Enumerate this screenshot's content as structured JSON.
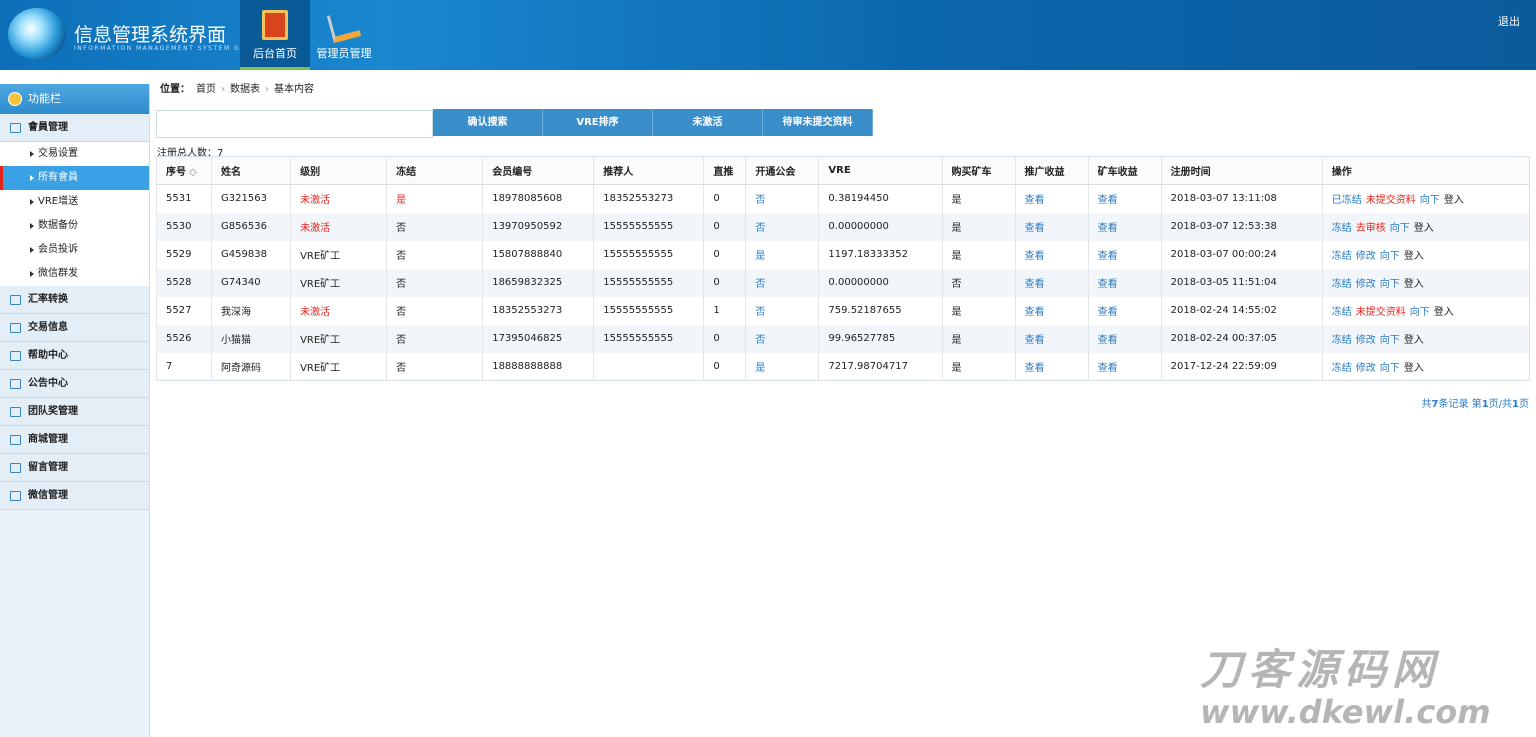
{
  "header": {
    "title": "信息管理系统界面",
    "subtitle": "INFORMATION MANAGEMENT SYSTEM GUI",
    "nav": [
      "后台首页",
      "管理员管理"
    ],
    "logout": "退出"
  },
  "sidebar": {
    "title": "功能栏",
    "groups": [
      {
        "label": "會員管理",
        "items": [
          "交易设置",
          "所有會員",
          "VRE增送",
          "数据备份",
          "会员投诉",
          "微信群发"
        ]
      },
      {
        "label": "汇率转换"
      },
      {
        "label": "交易信息"
      },
      {
        "label": "帮助中心"
      },
      {
        "label": "公告中心"
      },
      {
        "label": "团队奖管理"
      },
      {
        "label": "商城管理"
      },
      {
        "label": "留言管理"
      },
      {
        "label": "微信管理"
      }
    ]
  },
  "breadcrumb": {
    "label": "位置：",
    "items": [
      "首页",
      "数据表",
      "基本内容"
    ]
  },
  "buttons": [
    "确认搜索",
    "VRE排序",
    "未激活",
    "待审未提交资料"
  ],
  "count": {
    "label": "注册总人数：",
    "value": 7
  },
  "table": {
    "headers": [
      "序号",
      "姓名",
      "级别",
      "冻结",
      "会员编号",
      "推荐人",
      "直推",
      "开通公会",
      "VRE",
      "购买矿车",
      "推广收益",
      "矿车收益",
      "注册时间",
      "操作"
    ],
    "rows": [
      [
        5531,
        "G321563",
        {
          "text": "未激活",
          "color": "#e8231c"
        },
        {
          "text": "是",
          "color": "#e8231c"
        },
        "18978085608",
        "18352553273",
        0,
        "否",
        "0.38194450",
        "是",
        "查看",
        "查看",
        "2018-03-07 13:11:08",
        [
          "已冻结",
          {
            "text": "未提交资料",
            "color": "#e8231c"
          },
          "向下",
          "登入"
        ]
      ],
      [
        5530,
        "G856536",
        {
          "text": "未激活",
          "color": "#e8231c"
        },
        "否",
        "13970950592",
        "15555555555",
        0,
        "否",
        "0.00000000",
        "是",
        "查看",
        "查看",
        "2018-03-07 12:53:38",
        [
          "冻结",
          {
            "text": "去审核",
            "color": "#e8231c"
          },
          "向下",
          "登入"
        ]
      ],
      [
        5529,
        "G459838",
        "VRE矿工",
        "否",
        "15807888840",
        "15555555555",
        0,
        "是",
        "1197.18333352",
        "是",
        "查看",
        "查看",
        "2018-03-07 00:00:24",
        [
          "冻结",
          "修改",
          "向下",
          "登入"
        ]
      ],
      [
        5528,
        "G74340",
        "VRE矿工",
        "否",
        "18659832325",
        "15555555555",
        0,
        "否",
        "0.00000000",
        "否",
        "查看",
        "查看",
        "2018-03-05 11:51:04",
        [
          "冻结",
          "修改",
          "向下",
          "登入"
        ]
      ],
      [
        5527,
        "我深海",
        {
          "text": "未激活",
          "color": "#e8231c"
        },
        "否",
        "18352553273",
        "15555555555",
        1,
        "否",
        "759.52187655",
        "是",
        "查看",
        "查看",
        "2018-02-24 14:55:02",
        [
          "冻结",
          {
            "text": "未提交资料",
            "color": "#e8231c"
          },
          "向下",
          "登入"
        ]
      ],
      [
        5526,
        "小猫猫",
        "VRE矿工",
        "否",
        "17395046825",
        "15555555555",
        0,
        "否",
        "99.96527785",
        "是",
        "查看",
        "查看",
        "2018-02-24 00:37:05",
        [
          "冻结",
          "修改",
          "向下",
          "登入"
        ]
      ],
      [
        7,
        "阿奇源码",
        "VRE矿工",
        "否",
        "18888888888",
        "",
        0,
        "是",
        "7217.98704717",
        "是",
        "查看",
        "查看",
        "2017-12-24 22:59:09",
        [
          "冻结",
          "修改",
          "向下",
          "登入"
        ]
      ]
    ]
  },
  "pager": [
    "共",
    7,
    "条记录 第",
    1,
    "页/共",
    1,
    "页"
  ],
  "watermark": [
    "刀客源码网",
    "www.dkewl.com"
  ]
}
